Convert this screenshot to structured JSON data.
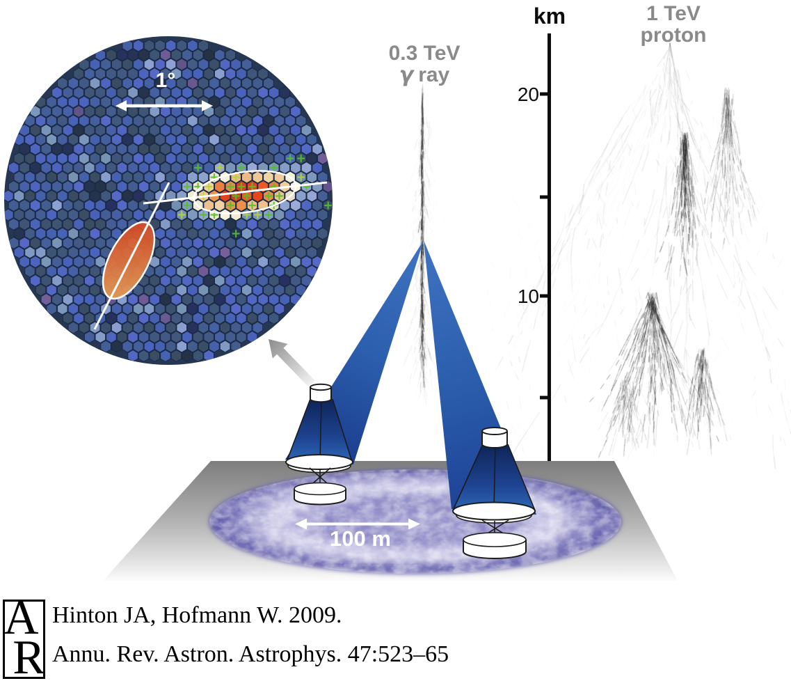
{
  "camera_inset": {
    "scale_label": "1°"
  },
  "gamma_shower": {
    "energy_label": "0.3 TeV",
    "particle_symbol": "γ",
    "particle_word": "ray"
  },
  "proton_shower": {
    "energy_label": "1 TeV",
    "particle_word": "proton"
  },
  "altitude_axis": {
    "unit_label": "km",
    "tick_labels": [
      "20",
      "10"
    ]
  },
  "ground": {
    "scale_label": "100 m"
  },
  "citation": {
    "logo_letters": [
      "A",
      "R"
    ],
    "line1": "Hinton JA, Hofmann W. 2009.",
    "line2": "Annu. Rev. Astron. Astrophys. 47:523–65"
  },
  "colors": {
    "beam_blue": "#2d62b0",
    "cone_navy": "#142c66",
    "pool_purple": "#8a87c6",
    "label_gray": "#8a8a8a",
    "hot_pixel_red": "#e2391b",
    "marker_green": "#54c02c",
    "scale_white": "#ffffff"
  }
}
